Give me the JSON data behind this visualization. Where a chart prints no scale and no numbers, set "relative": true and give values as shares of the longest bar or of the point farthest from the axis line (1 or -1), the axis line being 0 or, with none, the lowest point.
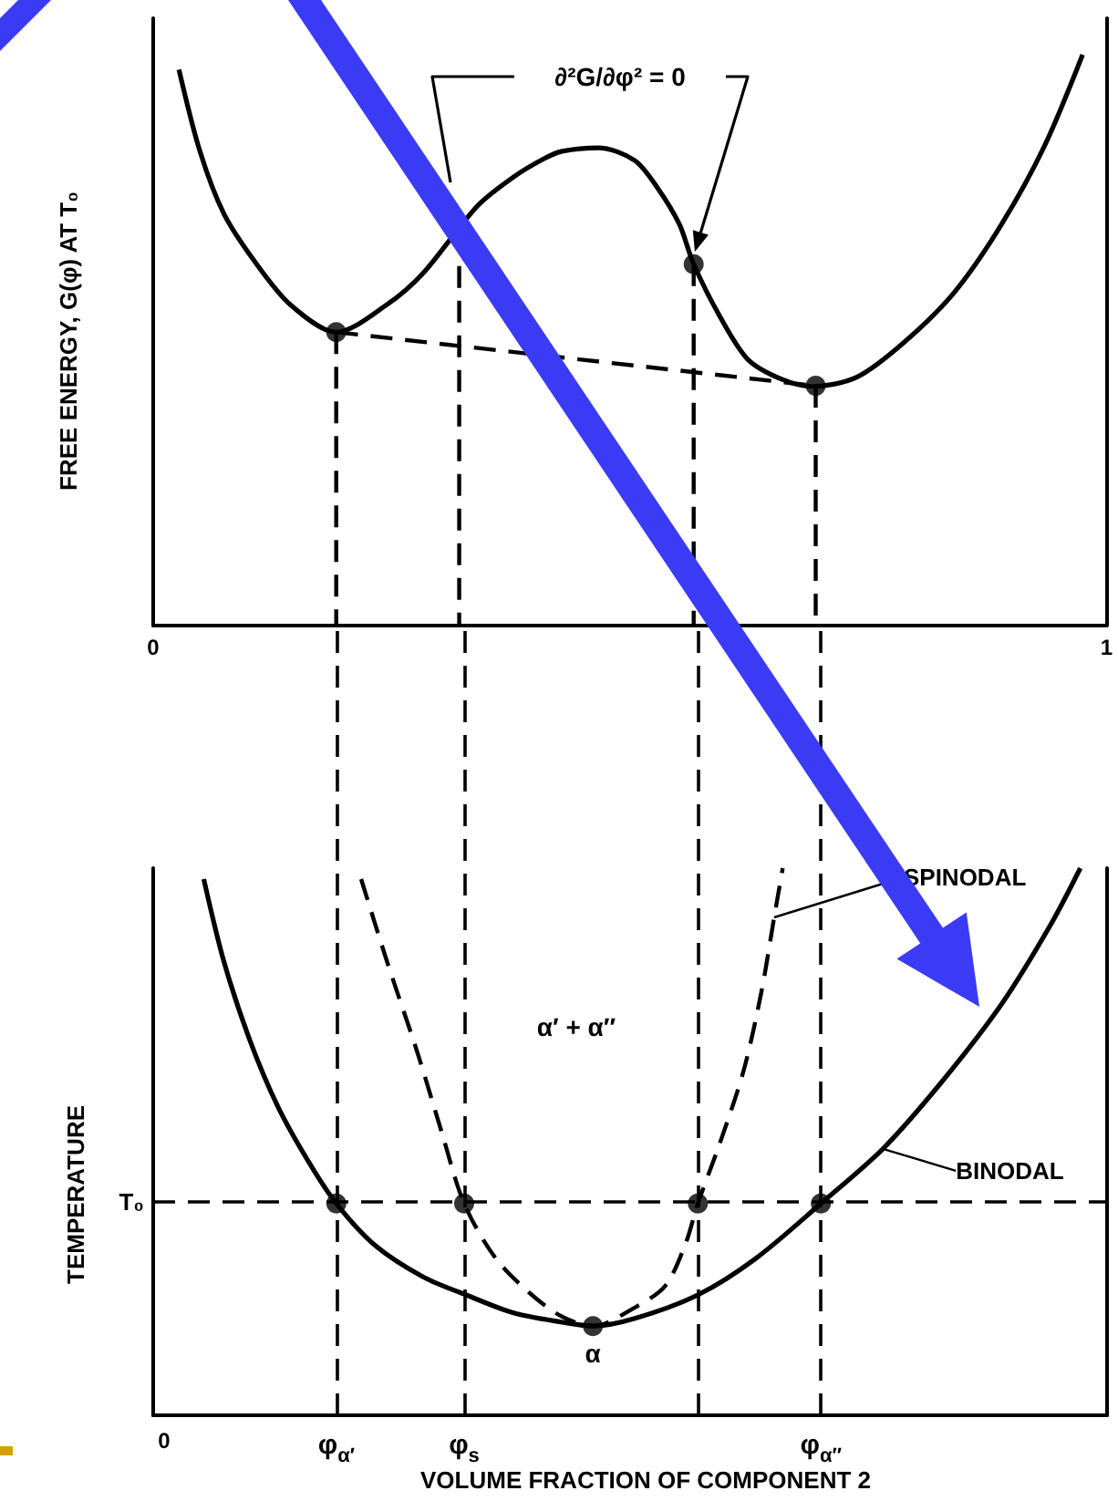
{
  "chart_data": [
    {
      "type": "line",
      "ylabel": "FREE ENERGY, G(φ) AT T₀",
      "xlim": [
        0,
        1
      ],
      "xticks": [
        0,
        1
      ],
      "relative": true,
      "annotations": [
        "∂²G/∂φ² = 0"
      ],
      "series": [
        {
          "color": "#000000",
          "line_style": "solid",
          "x": [
            0.027,
            0.049,
            0.074,
            0.106,
            0.144,
            0.192,
            0.245,
            0.283,
            0.34,
            0.378,
            0.41,
            0.429,
            0.467,
            0.505,
            0.529,
            0.552,
            0.567,
            0.594,
            0.624,
            0.66,
            0.691,
            0.738,
            0.789,
            0.841,
            0.89,
            0.935,
            0.975
          ],
          "values": [
            0.974,
            0.831,
            0.722,
            0.639,
            0.562,
            0.514,
            0.562,
            0.617,
            0.735,
            0.786,
            0.818,
            0.831,
            0.837,
            0.815,
            0.767,
            0.703,
            0.633,
            0.543,
            0.466,
            0.431,
            0.419,
            0.435,
            0.498,
            0.585,
            0.703,
            0.84,
            1.0
          ]
        },
        {
          "color": "#000000",
          "line_style": "dashed",
          "x": [
            0.192,
            0.695
          ],
          "values": [
            0.514,
            0.42
          ]
        },
        {
          "type": "line",
          "color": "#000000",
          "line_style": "dashed",
          "x": [
            0.192,
            0.192
          ],
          "values": [
            0.514,
            0
          ]
        },
        {
          "type": "line",
          "color": "#000000",
          "line_style": "dashed",
          "x": [
            0.321,
            0.321
          ],
          "values": [
            0.63,
            0
          ]
        },
        {
          "type": "line",
          "color": "#000000",
          "line_style": "dashed",
          "x": [
            0.567,
            0.567
          ],
          "values": [
            0.633,
            0
          ]
        },
        {
          "type": "line",
          "color": "#000000",
          "line_style": "dashed",
          "x": [
            0.695,
            0.695
          ],
          "values": [
            0.42,
            0
          ]
        },
        {
          "type": "scatter",
          "color": "#000000",
          "marker": "circle",
          "x": [
            0.192,
            0.567,
            0.695
          ],
          "values": [
            0.514,
            0.633,
            0.42
          ]
        }
      ]
    },
    {
      "type": "line",
      "xlabel": "VOLUME FRACTION OF COMPONENT 2",
      "ylabel": "TEMPERATURE",
      "xlim": [
        0,
        1
      ],
      "relative": true,
      "ref_lines": [
        {
          "axis": "y",
          "value": 0.387,
          "label": "T₀",
          "line_style": "dashed"
        },
        {
          "axis": "x",
          "value": 0.192,
          "label": "φ$_{α′}$",
          "line_style": "dashed"
        },
        {
          "axis": "x",
          "value": 0.326,
          "label": "φ$_{s}$",
          "line_style": "dashed"
        },
        {
          "axis": "x",
          "value": 0.571,
          "line_style": "dashed"
        },
        {
          "axis": "x",
          "value": 0.7,
          "label": "φ$_{α″}$",
          "line_style": "dashed"
        }
      ],
      "annotations": [
        "α′ + α″",
        {
          "text": "α",
          "x": 0.461,
          "y": 0.163
        },
        "0"
      ],
      "series": [
        {
          "name": "BINODAL",
          "color": "#000000",
          "line_style": "solid",
          "x": [
            0.053,
            0.074,
            0.101,
            0.131,
            0.163,
            0.192,
            0.233,
            0.283,
            0.328,
            0.378,
            0.429,
            0.461,
            0.505,
            0.571,
            0.632,
            0.7,
            0.765,
            0.827,
            0.89,
            0.941,
            0.972
          ],
          "values": [
            0.98,
            0.83,
            0.687,
            0.563,
            0.463,
            0.387,
            0.31,
            0.253,
            0.22,
            0.187,
            0.17,
            0.163,
            0.177,
            0.22,
            0.287,
            0.387,
            0.487,
            0.61,
            0.753,
            0.897,
            1.0
          ]
        },
        {
          "name": "SPINODAL",
          "color": "#000000",
          "line_style": "dashed",
          "x": [
            0.218,
            0.245,
            0.277,
            0.302,
            0.326,
            0.359,
            0.397,
            0.429,
            0.461,
            0.505,
            0.537,
            0.558,
            0.571,
            0.594,
            0.619,
            0.638,
            0.651,
            0.66
          ],
          "values": [
            0.98,
            0.83,
            0.663,
            0.52,
            0.387,
            0.287,
            0.22,
            0.18,
            0.163,
            0.197,
            0.237,
            0.313,
            0.387,
            0.497,
            0.63,
            0.777,
            0.91,
            1.0
          ]
        },
        {
          "type": "scatter",
          "color": "#000000",
          "marker": "circle",
          "x": [
            0.192,
            0.326,
            0.571,
            0.7,
            0.461
          ],
          "values": [
            0.387,
            0.387,
            0.387,
            0.387,
            0.163
          ]
        }
      ]
    }
  ]
}
